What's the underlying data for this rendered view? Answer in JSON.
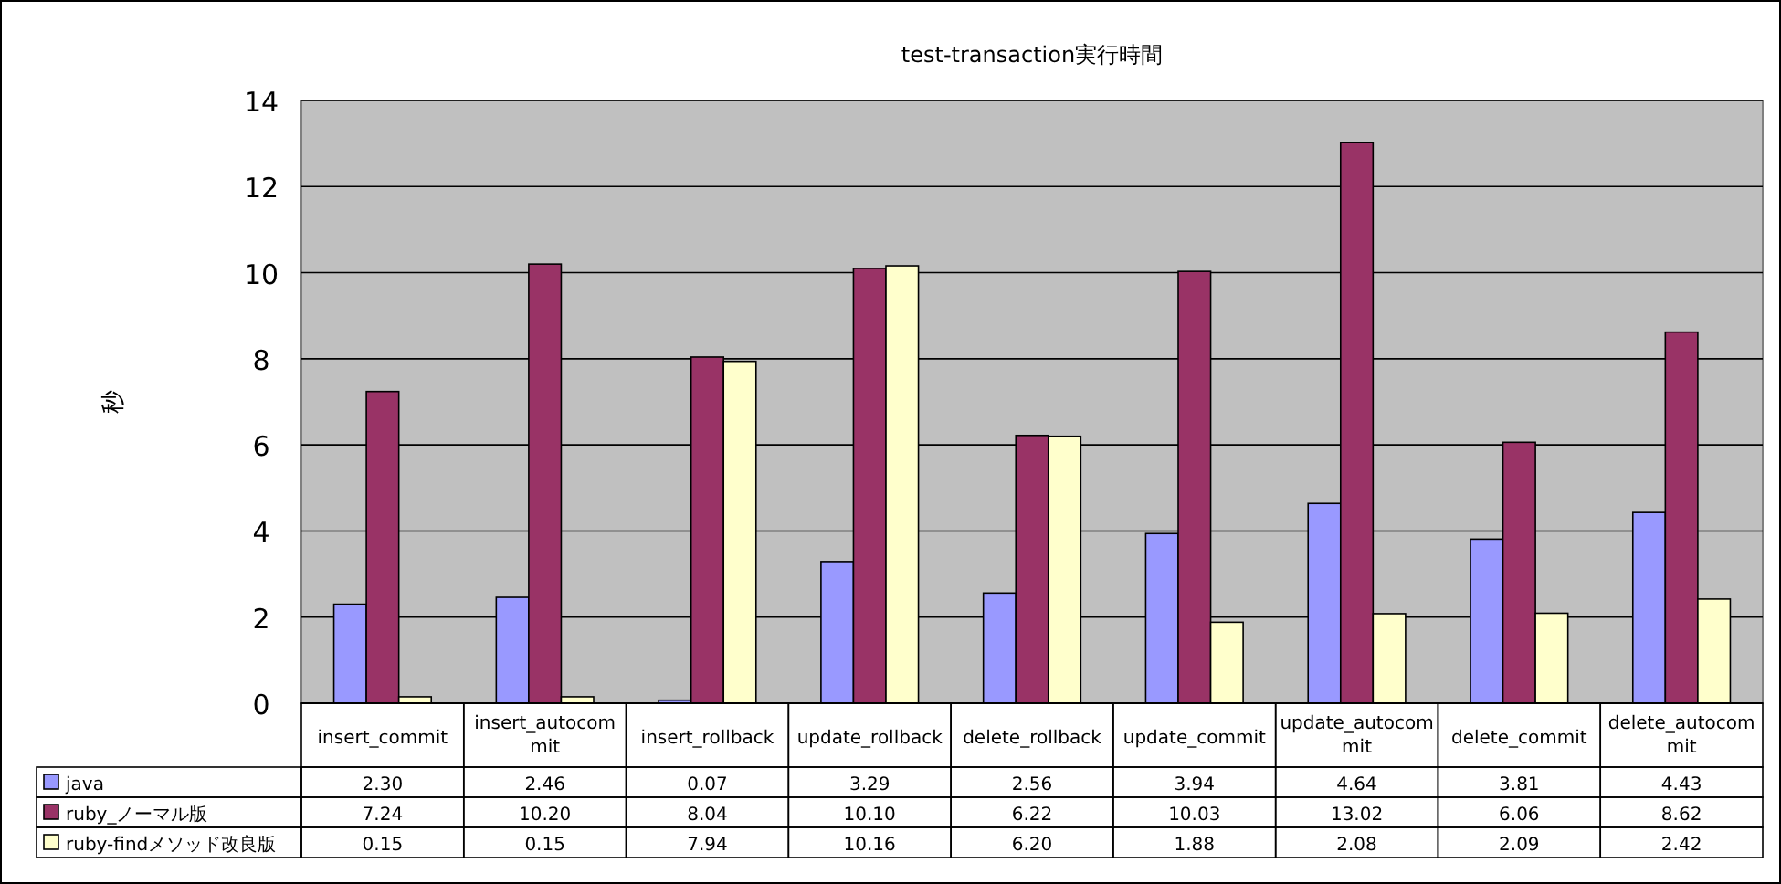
{
  "chart_data": {
    "type": "bar",
    "title": "test-transaction実行時間",
    "ylabel": "秒",
    "categories": [
      "insert_commit",
      "insert_autocommit",
      "insert_rollback",
      "update_rollback",
      "delete_rollback",
      "update_commit",
      "update_autocommit",
      "delete_commit",
      "delete_autocommit"
    ],
    "series": [
      {
        "name": "java",
        "color": "#9999ff",
        "values": [
          2.3,
          2.46,
          0.07,
          3.29,
          2.56,
          3.94,
          4.64,
          3.81,
          4.43
        ],
        "value_labels": [
          "2.30",
          "2.46",
          "0.07",
          "3.29",
          "2.56",
          "3.94",
          "4.64",
          "3.81",
          "4.43"
        ]
      },
      {
        "name": "ruby_ノーマル版",
        "color": "#993366",
        "values": [
          7.24,
          10.2,
          8.04,
          10.1,
          6.22,
          10.03,
          13.02,
          6.06,
          8.62
        ],
        "value_labels": [
          "7.24",
          "10.20",
          "8.04",
          "10.10",
          "6.22",
          "10.03",
          "13.02",
          "6.06",
          "8.62"
        ]
      },
      {
        "name": "ruby-findメソッド改良版",
        "color": "#ffffcc",
        "values": [
          0.15,
          0.15,
          7.94,
          10.16,
          6.2,
          1.88,
          2.08,
          2.09,
          2.42
        ],
        "value_labels": [
          "0.15",
          "0.15",
          "7.94",
          "10.16",
          "6.20",
          "1.88",
          "2.08",
          "2.09",
          "2.42"
        ]
      }
    ],
    "ylim": [
      0,
      14
    ],
    "yticks": [
      0,
      2,
      4,
      6,
      8,
      10,
      12,
      14
    ],
    "grid": "y",
    "legend": "bottom"
  }
}
